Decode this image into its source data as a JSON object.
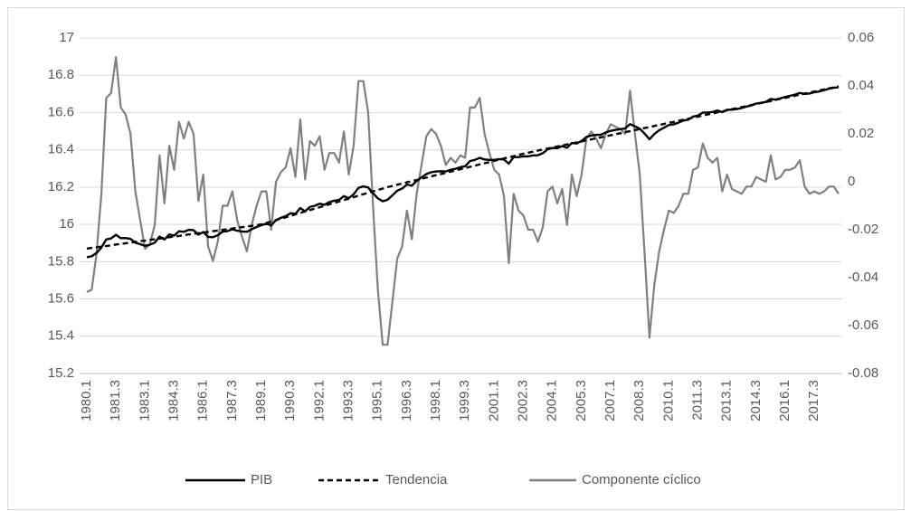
{
  "chart_data": {
    "type": "line",
    "categories": [
      "1980.1",
      null,
      null,
      null,
      null,
      null,
      "1981.3",
      null,
      null,
      null,
      null,
      null,
      "1983.1",
      null,
      null,
      null,
      null,
      null,
      "1984.3",
      null,
      null,
      null,
      null,
      null,
      "1986.1",
      null,
      null,
      null,
      null,
      null,
      "1987.3",
      null,
      null,
      null,
      null,
      null,
      "1989.1",
      null,
      null,
      null,
      null,
      null,
      "1990.3",
      null,
      null,
      null,
      null,
      null,
      "1992.1",
      null,
      null,
      null,
      null,
      null,
      "1993.3",
      null,
      null,
      null,
      null,
      null,
      "1995.1",
      null,
      null,
      null,
      null,
      null,
      "1996.3",
      null,
      null,
      null,
      null,
      null,
      "1998.1",
      null,
      null,
      null,
      null,
      null,
      "1999.3",
      null,
      null,
      null,
      null,
      null,
      "2001.1",
      null,
      null,
      null,
      null,
      null,
      "2002.3",
      null,
      null,
      null,
      null,
      null,
      "2004.1",
      null,
      null,
      null,
      null,
      null,
      "2005.3",
      null,
      null,
      null,
      null,
      null,
      "2007.1",
      null,
      null,
      null,
      null,
      null,
      "2008.3",
      null,
      null,
      null,
      null,
      null,
      "2010.1",
      null,
      null,
      null,
      null,
      null,
      "2011.3",
      null,
      null,
      null,
      null,
      null,
      "2013.1",
      null,
      null,
      null,
      null,
      null,
      "2014.3",
      null,
      null,
      null,
      null,
      null,
      "2016.1",
      null,
      null,
      null,
      null,
      null,
      "2017.3",
      null,
      null,
      null,
      null,
      null
    ],
    "series": [
      {
        "name": "PIB",
        "color": "#000000",
        "dash": "solid",
        "axis": "y",
        "values": [
          15.824,
          15.829,
          15.847,
          15.876,
          15.919,
          15.925,
          15.944,
          15.926,
          15.927,
          15.922,
          15.902,
          15.894,
          15.885,
          15.891,
          15.902,
          15.935,
          15.919,
          15.946,
          15.94,
          15.963,
          15.96,
          15.971,
          15.969,
          15.945,
          15.959,
          15.933,
          15.931,
          15.942,
          15.961,
          15.964,
          15.974,
          15.966,
          15.962,
          15.96,
          15.974,
          15.986,
          15.996,
          16.004,
          15.995,
          16.023,
          16.035,
          16.044,
          16.06,
          16.056,
          16.088,
          16.07,
          16.094,
          16.1,
          16.111,
          16.105,
          16.12,
          16.127,
          16.131,
          16.152,
          16.141,
          16.161,
          16.196,
          16.204,
          16.198,
          16.167,
          16.14,
          16.124,
          16.132,
          16.156,
          16.181,
          16.192,
          16.214,
          16.208,
          16.233,
          16.252,
          16.27,
          16.28,
          16.284,
          16.285,
          16.284,
          16.293,
          16.298,
          16.307,
          16.312,
          16.34,
          16.346,
          16.357,
          16.348,
          16.346,
          16.346,
          16.35,
          16.348,
          16.326,
          16.361,
          16.361,
          16.365,
          16.365,
          16.37,
          16.371,
          16.382,
          16.403,
          16.41,
          16.409,
          16.42,
          16.411,
          16.437,
          16.434,
          16.448,
          16.469,
          16.477,
          16.48,
          16.481,
          16.493,
          16.502,
          16.507,
          16.511,
          16.515,
          16.538,
          16.526,
          16.514,
          16.487,
          16.457,
          16.485,
          16.505,
          16.519,
          16.533,
          16.537,
          16.546,
          16.557,
          16.562,
          16.578,
          16.584,
          16.6,
          16.6,
          16.603,
          16.611,
          16.602,
          16.615,
          16.615,
          16.619,
          16.624,
          16.632,
          16.638,
          16.648,
          16.652,
          16.657,
          16.673,
          16.669,
          16.676,
          16.684,
          16.69,
          16.696,
          16.705,
          16.7,
          16.702,
          16.709,
          16.713,
          16.72,
          16.728,
          16.733,
          16.736
        ]
      },
      {
        "name": "Tendencia",
        "color": "#000000",
        "dash": "dashed",
        "axis": "y",
        "values": [
          15.87,
          15.874,
          15.877,
          15.881,
          15.884,
          15.888,
          15.892,
          15.895,
          15.899,
          15.902,
          15.906,
          15.91,
          15.913,
          15.917,
          15.92,
          15.924,
          15.928,
          15.931,
          15.935,
          15.938,
          15.942,
          15.946,
          15.949,
          15.953,
          15.956,
          15.96,
          15.964,
          15.967,
          15.971,
          15.974,
          15.978,
          15.982,
          15.985,
          15.989,
          15.992,
          15.996,
          16.0,
          16.008,
          16.015,
          16.023,
          16.031,
          16.038,
          16.046,
          16.054,
          16.062,
          16.069,
          16.077,
          16.085,
          16.092,
          16.1,
          16.108,
          16.115,
          16.123,
          16.131,
          16.138,
          16.146,
          16.154,
          16.162,
          16.169,
          16.177,
          16.185,
          16.192,
          16.2,
          16.206,
          16.213,
          16.219,
          16.226,
          16.232,
          16.238,
          16.245,
          16.251,
          16.258,
          16.264,
          16.27,
          16.277,
          16.283,
          16.29,
          16.296,
          16.302,
          16.309,
          16.315,
          16.322,
          16.328,
          16.334,
          16.341,
          16.347,
          16.354,
          16.36,
          16.366,
          16.373,
          16.379,
          16.385,
          16.39,
          16.396,
          16.401,
          16.407,
          16.412,
          16.418,
          16.423,
          16.429,
          16.434,
          16.44,
          16.445,
          16.451,
          16.456,
          16.462,
          16.467,
          16.473,
          16.478,
          16.484,
          16.489,
          16.495,
          16.5,
          16.506,
          16.511,
          16.517,
          16.522,
          16.528,
          16.534,
          16.539,
          16.545,
          16.55,
          16.556,
          16.562,
          16.567,
          16.573,
          16.578,
          16.584,
          16.59,
          16.595,
          16.601,
          16.606,
          16.612,
          16.618,
          16.623,
          16.629,
          16.634,
          16.64,
          16.646,
          16.651,
          16.657,
          16.662,
          16.668,
          16.674,
          16.679,
          16.685,
          16.69,
          16.696,
          16.702,
          16.707,
          16.713,
          16.718,
          16.724,
          16.73,
          16.735,
          16.741
        ]
      },
      {
        "name": "Componente cíclico",
        "color": "#808080",
        "dash": "solid",
        "axis": "y2",
        "values": [
          -0.046,
          -0.045,
          -0.03,
          -0.005,
          0.035,
          0.037,
          0.052,
          0.031,
          0.028,
          0.02,
          -0.004,
          -0.016,
          -0.028,
          -0.026,
          -0.018,
          0.011,
          -0.009,
          0.015,
          0.005,
          0.025,
          0.018,
          0.025,
          0.02,
          -0.008,
          0.003,
          -0.027,
          -0.033,
          -0.025,
          -0.01,
          -0.01,
          -0.004,
          -0.016,
          -0.023,
          -0.029,
          -0.018,
          -0.01,
          -0.004,
          -0.004,
          -0.02,
          0.0,
          0.004,
          0.006,
          0.014,
          0.002,
          0.026,
          0.001,
          0.017,
          0.015,
          0.019,
          0.005,
          0.012,
          0.012,
          0.008,
          0.021,
          0.003,
          0.015,
          0.042,
          0.042,
          0.029,
          -0.01,
          -0.045,
          -0.068,
          -0.068,
          -0.05,
          -0.032,
          -0.027,
          -0.012,
          -0.024,
          -0.005,
          0.007,
          0.019,
          0.022,
          0.02,
          0.015,
          0.007,
          0.01,
          0.008,
          0.011,
          0.01,
          0.031,
          0.031,
          0.035,
          0.02,
          0.012,
          0.005,
          0.003,
          -0.006,
          -0.034,
          -0.005,
          -0.012,
          -0.014,
          -0.02,
          -0.02,
          -0.025,
          -0.019,
          -0.004,
          -0.002,
          -0.009,
          -0.003,
          -0.018,
          0.003,
          -0.006,
          0.003,
          0.018,
          0.021,
          0.018,
          0.014,
          0.02,
          0.024,
          0.023,
          0.022,
          0.02,
          0.038,
          0.02,
          0.003,
          -0.03,
          -0.065,
          -0.043,
          -0.029,
          -0.02,
          -0.012,
          -0.013,
          -0.01,
          -0.005,
          -0.005,
          0.005,
          0.006,
          0.016,
          0.01,
          0.008,
          0.01,
          -0.004,
          0.003,
          -0.003,
          -0.004,
          -0.005,
          -0.002,
          -0.002,
          0.002,
          0.001,
          0.0,
          0.011,
          0.001,
          0.002,
          0.005,
          0.005,
          0.006,
          0.009,
          -0.002,
          -0.005,
          -0.004,
          -0.005,
          -0.004,
          -0.002,
          -0.002,
          -0.005
        ]
      }
    ],
    "ylim": [
      15.2,
      17
    ],
    "yticks": [
      15.2,
      15.4,
      15.6,
      15.8,
      16,
      16.2,
      16.4,
      16.6,
      16.8,
      17
    ],
    "y2lim": [
      -0.08,
      0.06
    ],
    "y2ticks": [
      -0.08,
      -0.06,
      -0.04,
      -0.02,
      0,
      0.02,
      0.04,
      0.06
    ],
    "grid": true,
    "legend": "bottom"
  }
}
